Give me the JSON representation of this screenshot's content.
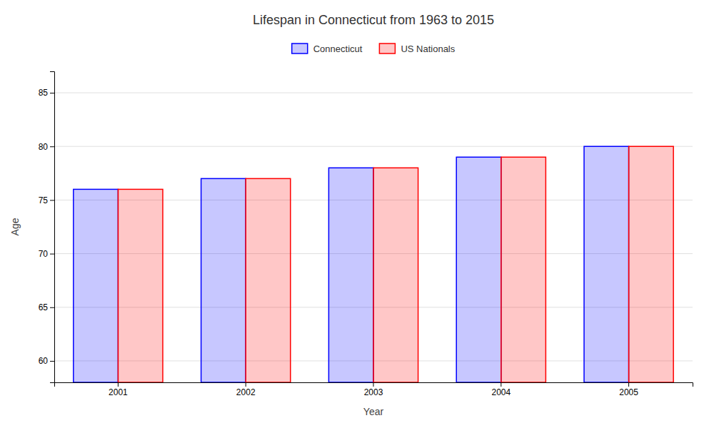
{
  "chart_data": {
    "type": "bar",
    "title": "Lifespan in Connecticut from 1963 to 2015",
    "x_label": "Year",
    "y_label": "Age",
    "categories": [
      "2001",
      "2002",
      "2003",
      "2004",
      "2005"
    ],
    "series": [
      {
        "name": "Connecticut",
        "color": "#0000ff",
        "values": [
          76,
          77,
          78,
          79,
          80
        ]
      },
      {
        "name": "US Nationals",
        "color": "#ff0000",
        "values": [
          76,
          77,
          78,
          79,
          80
        ]
      }
    ],
    "ylim": [
      58,
      87
    ],
    "yticks": [
      60,
      65,
      70,
      75,
      80,
      85
    ],
    "grid": true,
    "legend": "upper center"
  }
}
